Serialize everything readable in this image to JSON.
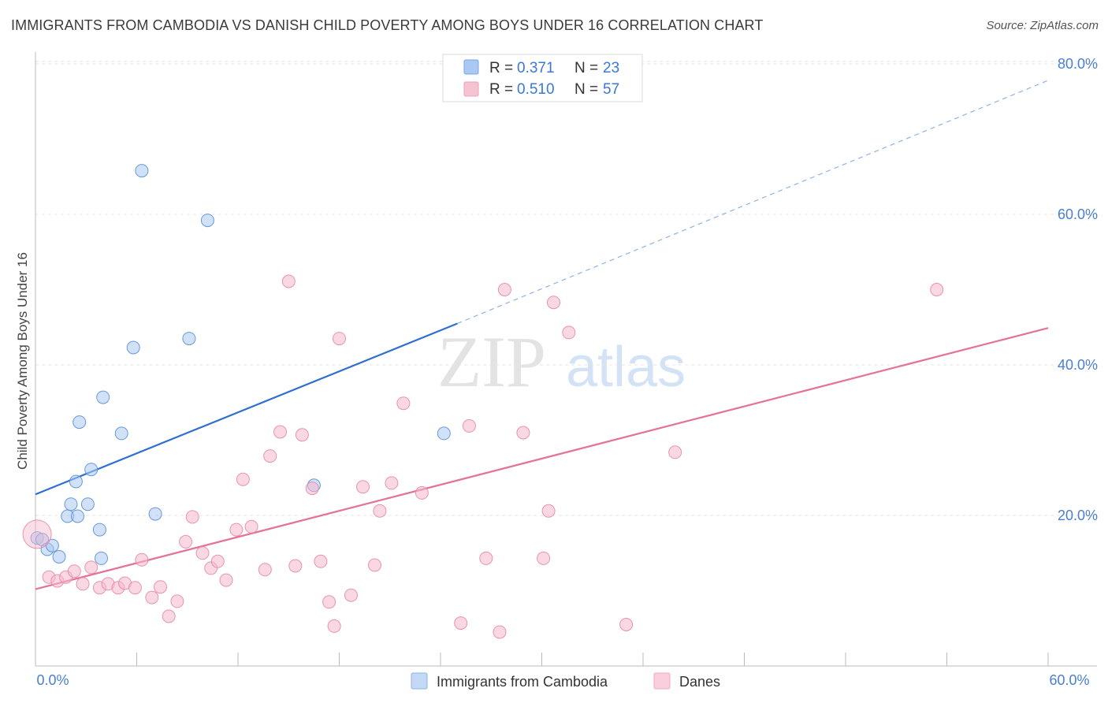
{
  "title": "IMMIGRANTS FROM CAMBODIA VS DANISH CHILD POVERTY AMONG BOYS UNDER 16 CORRELATION CHART",
  "source": "Source: ZipAtlas.com",
  "watermark": {
    "zip": "ZIP",
    "atlas": "atlas"
  },
  "legend_stats": [
    {
      "r_label": "R = ",
      "r_value": "0.371",
      "n_label": "N = ",
      "n_value": "23",
      "color": "#a9c8f2"
    },
    {
      "r_label": "R = ",
      "r_value": "0.510",
      "n_label": "N = ",
      "n_value": "57",
      "color": "#f6b8cc"
    }
  ],
  "chart_data": {
    "type": "scatter",
    "title": "IMMIGRANTS FROM CAMBODIA VS DANISH CHILD POVERTY AMONG BOYS UNDER 16 CORRELATION CHART",
    "xlabel": "",
    "ylabel": "Child Poverty Among Boys Under 16",
    "xlim": [
      0,
      60
    ],
    "ylim": [
      0,
      80
    ],
    "x_tick_labels": [
      "0.0%",
      "60.0%"
    ],
    "y_tick_labels": [
      "20.0%",
      "40.0%",
      "60.0%",
      "80.0%"
    ],
    "y_ticks": [
      20,
      40,
      60,
      80
    ],
    "grid": true,
    "legend_position": "bottom",
    "series": [
      {
        "name": "Immigrants from Cambodia",
        "color": "#a9c8f2",
        "stroke": "#5b8fd6",
        "line_color": "#2f6fcf",
        "trend": {
          "x_start": 0,
          "y_start": 22.8,
          "x_end": 25,
          "y_end": 45.5,
          "dashed_to_x": 60,
          "dashed_to_y": 77.8
        },
        "points": [
          [
            0.1,
            17.0
          ],
          [
            0.4,
            16.8
          ],
          [
            0.7,
            15.5
          ],
          [
            1.0,
            16.0
          ],
          [
            1.4,
            14.5
          ],
          [
            1.9,
            19.9
          ],
          [
            2.5,
            19.9
          ],
          [
            2.1,
            21.5
          ],
          [
            3.1,
            21.5
          ],
          [
            2.4,
            24.5
          ],
          [
            3.3,
            26.1
          ],
          [
            3.8,
            18.1
          ],
          [
            3.9,
            14.3
          ],
          [
            2.6,
            32.4
          ],
          [
            4.0,
            35.7
          ],
          [
            5.1,
            30.9
          ],
          [
            5.8,
            42.3
          ],
          [
            7.1,
            20.2
          ],
          [
            6.3,
            65.8
          ],
          [
            9.1,
            43.5
          ],
          [
            10.2,
            59.2
          ],
          [
            16.5,
            24.0
          ],
          [
            24.2,
            30.9
          ]
        ]
      },
      {
        "name": "Danes",
        "color": "#f6b8cc",
        "stroke": "#e48aa6",
        "line_color": "#e4739b",
        "trend": {
          "x_start": 0,
          "y_start": 10.2,
          "x_end": 60,
          "y_end": 44.9
        },
        "points": [
          [
            0.1,
            17.5
          ],
          [
            0.8,
            11.8
          ],
          [
            1.3,
            11.3
          ],
          [
            1.8,
            11.8
          ],
          [
            2.3,
            12.6
          ],
          [
            2.8,
            10.9
          ],
          [
            3.3,
            13.1
          ],
          [
            3.8,
            10.4
          ],
          [
            4.3,
            10.9
          ],
          [
            4.9,
            10.4
          ],
          [
            5.3,
            11.0
          ],
          [
            5.9,
            10.4
          ],
          [
            6.3,
            14.1
          ],
          [
            6.9,
            9.1
          ],
          [
            7.4,
            10.5
          ],
          [
            7.9,
            6.6
          ],
          [
            8.4,
            8.6
          ],
          [
            8.9,
            16.5
          ],
          [
            9.3,
            19.8
          ],
          [
            9.9,
            15.0
          ],
          [
            10.4,
            13.0
          ],
          [
            10.8,
            13.9
          ],
          [
            11.3,
            11.4
          ],
          [
            11.9,
            18.1
          ],
          [
            12.3,
            24.8
          ],
          [
            12.8,
            18.5
          ],
          [
            13.6,
            12.8
          ],
          [
            13.9,
            27.9
          ],
          [
            14.5,
            31.1
          ],
          [
            15.0,
            51.1
          ],
          [
            15.4,
            13.3
          ],
          [
            15.8,
            30.7
          ],
          [
            16.4,
            23.6
          ],
          [
            16.9,
            13.9
          ],
          [
            17.4,
            8.5
          ],
          [
            17.7,
            5.3
          ],
          [
            18.0,
            43.5
          ],
          [
            18.7,
            9.4
          ],
          [
            19.4,
            23.8
          ],
          [
            20.1,
            13.4
          ],
          [
            20.4,
            20.6
          ],
          [
            21.1,
            24.3
          ],
          [
            21.8,
            34.9
          ],
          [
            22.9,
            23.0
          ],
          [
            25.2,
            5.7
          ],
          [
            25.7,
            31.9
          ],
          [
            26.7,
            14.3
          ],
          [
            27.5,
            4.5
          ],
          [
            27.8,
            50.0
          ],
          [
            28.9,
            31.0
          ],
          [
            30.1,
            14.3
          ],
          [
            30.4,
            20.6
          ],
          [
            30.7,
            48.3
          ],
          [
            31.6,
            44.3
          ],
          [
            35.0,
            5.5
          ],
          [
            37.9,
            28.4
          ],
          [
            53.4,
            50.0
          ]
        ]
      }
    ]
  }
}
